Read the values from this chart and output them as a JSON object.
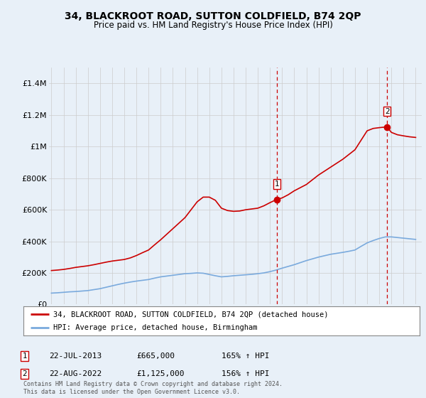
{
  "title": "34, BLACKROOT ROAD, SUTTON COLDFIELD, B74 2QP",
  "subtitle": "Price paid vs. HM Land Registry's House Price Index (HPI)",
  "background_color": "#e8f0f8",
  "plot_bg_color": "#e8f0f8",
  "red_line_color": "#cc0000",
  "blue_line_color": "#7aaadd",
  "ylim": [
    0,
    1500000
  ],
  "yticks": [
    0,
    200000,
    400000,
    600000,
    800000,
    1000000,
    1200000,
    1400000
  ],
  "ytick_labels": [
    "£0",
    "£200K",
    "£400K",
    "£600K",
    "£800K",
    "£1M",
    "£1.2M",
    "£1.4M"
  ],
  "footer_text": "Contains HM Land Registry data © Crown copyright and database right 2024.\nThis data is licensed under the Open Government Licence v3.0.",
  "legend_red_label": "34, BLACKROOT ROAD, SUTTON COLDFIELD, B74 2QP (detached house)",
  "legend_blue_label": "HPI: Average price, detached house, Birmingham",
  "sale1_date": "22-JUL-2013",
  "sale1_price": "£665,000",
  "sale1_hpi": "165% ↑ HPI",
  "sale1_year": 2013.55,
  "sale1_value": 665000,
  "sale2_date": "22-AUG-2022",
  "sale2_price": "£1,125,000",
  "sale2_hpi": "156% ↑ HPI",
  "sale2_year": 2022.64,
  "sale2_value": 1125000,
  "red_x": [
    1995,
    1995.5,
    1996,
    1996.5,
    1997,
    1997.5,
    1998,
    1998.5,
    1999,
    1999.5,
    2000,
    2000.5,
    2001,
    2001.5,
    2002,
    2002.5,
    2003,
    2003.5,
    2004,
    2004.5,
    2005,
    2005.5,
    2006,
    2006.5,
    2007,
    2007.5,
    2008,
    2008.5,
    2009,
    2009.5,
    2010,
    2010.5,
    2011,
    2011.5,
    2012,
    2012.5,
    2013,
    2013.55,
    2014,
    2014.5,
    2015,
    2015.5,
    2016,
    2016.5,
    2017,
    2017.5,
    2018,
    2018.5,
    2019,
    2019.5,
    2020,
    2020.5,
    2021,
    2021.5,
    2022,
    2022.64,
    2023,
    2023.5,
    2024,
    2024.5,
    2025
  ],
  "red_y": [
    215000,
    218000,
    222000,
    228000,
    235000,
    240000,
    245000,
    252000,
    260000,
    268000,
    275000,
    280000,
    285000,
    295000,
    310000,
    328000,
    345000,
    378000,
    410000,
    445000,
    480000,
    515000,
    550000,
    600000,
    650000,
    680000,
    680000,
    660000,
    610000,
    595000,
    590000,
    592000,
    600000,
    605000,
    610000,
    625000,
    645000,
    665000,
    675000,
    695000,
    720000,
    740000,
    760000,
    790000,
    820000,
    845000,
    870000,
    895000,
    920000,
    950000,
    980000,
    1040000,
    1100000,
    1115000,
    1120000,
    1125000,
    1090000,
    1075000,
    1068000,
    1062000,
    1058000
  ],
  "blue_x": [
    1995,
    1995.5,
    1996,
    1996.5,
    1997,
    1997.5,
    1998,
    1998.5,
    1999,
    1999.5,
    2000,
    2000.5,
    2001,
    2001.5,
    2002,
    2002.5,
    2003,
    2003.5,
    2004,
    2004.5,
    2005,
    2005.5,
    2006,
    2006.5,
    2007,
    2007.5,
    2008,
    2008.5,
    2009,
    2009.5,
    2010,
    2010.5,
    2011,
    2011.5,
    2012,
    2012.5,
    2013,
    2013.5,
    2014,
    2014.5,
    2015,
    2015.5,
    2016,
    2016.5,
    2017,
    2017.5,
    2018,
    2018.5,
    2019,
    2019.5,
    2020,
    2020.5,
    2021,
    2021.5,
    2022,
    2022.5,
    2023,
    2023.5,
    2024,
    2024.5,
    2025
  ],
  "blue_y": [
    72000,
    74000,
    77000,
    80000,
    82000,
    85000,
    88000,
    94000,
    100000,
    109000,
    118000,
    127000,
    135000,
    142000,
    148000,
    153000,
    158000,
    167000,
    175000,
    180000,
    185000,
    190000,
    195000,
    197000,
    200000,
    198000,
    190000,
    182000,
    175000,
    178000,
    182000,
    185000,
    188000,
    191000,
    195000,
    200000,
    208000,
    218000,
    230000,
    241000,
    252000,
    265000,
    278000,
    289000,
    300000,
    309000,
    318000,
    324000,
    330000,
    337000,
    345000,
    368000,
    390000,
    405000,
    418000,
    428000,
    428000,
    424000,
    420000,
    416000,
    412000
  ],
  "xmin": 1994.8,
  "xmax": 2025.5,
  "grid_color": "#cccccc",
  "dashed_color": "#cc0000"
}
